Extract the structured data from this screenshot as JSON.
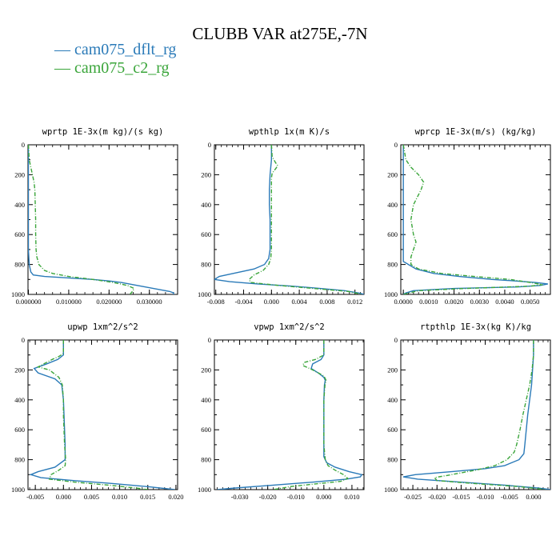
{
  "title": "CLUBB VAR at275E,-7N",
  "legend": [
    {
      "label": "— cam075_dflt_rg",
      "color": "#2a7ab8"
    },
    {
      "label": "— cam075_c2_rg",
      "color": "#3aa53a"
    }
  ],
  "chart_data": [
    {
      "type": "line",
      "title": "wprtp  1E-3x(m kg)/(s kg)",
      "xlim": [
        -0.0001,
        0.037
      ],
      "ylim": [
        0,
        1000
      ],
      "y_inverted": true,
      "xticks": [
        0.0,
        0.01,
        0.02,
        0.03
      ],
      "xticklabels": [
        "0.000000",
        "0.010000",
        "0.020000",
        "0.030000"
      ],
      "yticks": [
        0,
        200,
        400,
        600,
        800,
        1000
      ],
      "yticklabels": [
        "0",
        "200",
        "400",
        "600",
        "800",
        "1000"
      ],
      "series": [
        {
          "name": "cam075_dflt_rg",
          "color": "#2a7ab8",
          "dashed": false,
          "y": [
            0,
            100,
            200,
            300,
            400,
            500,
            600,
            700,
            800,
            850,
            870,
            880,
            890,
            900,
            910,
            920,
            930,
            940,
            950,
            960,
            970,
            980,
            990,
            1000
          ],
          "x": [
            0.0,
            0.0,
            0.0,
            0.0,
            0.0,
            0.0,
            0.0,
            0.0,
            0.0002,
            0.0006,
            0.0012,
            0.004,
            0.01,
            0.016,
            0.02,
            0.023,
            0.025,
            0.027,
            0.029,
            0.031,
            0.033,
            0.035,
            0.036,
            0.036
          ]
        },
        {
          "name": "cam075_c2_rg",
          "color": "#3aa53a",
          "dashed": true,
          "y": [
            0,
            100,
            150,
            200,
            250,
            300,
            400,
            500,
            600,
            700,
            750,
            800,
            840,
            860,
            880,
            900,
            920,
            940,
            960,
            980,
            1000
          ],
          "x": [
            0.0,
            0.0002,
            0.0006,
            0.001,
            0.0014,
            0.0016,
            0.0017,
            0.0018,
            0.0018,
            0.0019,
            0.0021,
            0.0026,
            0.004,
            0.006,
            0.01,
            0.016,
            0.021,
            0.0245,
            0.0262,
            0.0258,
            0.0252
          ]
        }
      ]
    },
    {
      "type": "line",
      "title": "wpthlp  1x(m K)/s",
      "xlim": [
        -0.0082,
        0.0133
      ],
      "ylim": [
        0,
        1000
      ],
      "y_inverted": true,
      "xticks": [
        -0.008,
        -0.004,
        0.0,
        0.004,
        0.008,
        0.012
      ],
      "xticklabels": [
        "-0.008",
        "-0.004",
        "0.000",
        "0.004",
        "0.008",
        "0.012"
      ],
      "yticks": [
        0,
        200,
        400,
        600,
        800,
        1000
      ],
      "yticklabels": [
        "0",
        "200",
        "400",
        "600",
        "800",
        "1000"
      ],
      "series": [
        {
          "name": "cam075_dflt_rg",
          "color": "#2a7ab8",
          "dashed": false,
          "y": [
            0,
            100,
            200,
            300,
            400,
            500,
            600,
            700,
            760,
            800,
            830,
            860,
            880,
            900,
            915,
            930,
            945,
            960,
            975,
            990,
            1000
          ],
          "x": [
            0.0,
            0.0,
            -0.0002,
            -0.0003,
            -0.0003,
            -0.0002,
            -0.0002,
            -0.0002,
            -0.0004,
            -0.001,
            -0.0025,
            -0.0055,
            -0.0075,
            -0.0082,
            -0.006,
            -0.002,
            0.003,
            0.007,
            0.0105,
            0.0125,
            0.0133
          ]
        },
        {
          "name": "cam075_c2_rg",
          "color": "#3aa53a",
          "dashed": true,
          "y": [
            0,
            80,
            120,
            140,
            160,
            190,
            220,
            300,
            400,
            500,
            600,
            700,
            760,
            800,
            840,
            870,
            900,
            920,
            940,
            960,
            980,
            1000
          ],
          "x": [
            0.0,
            0.0001,
            0.0006,
            0.0009,
            0.0006,
            0.0001,
            0.0,
            0.0,
            0.0,
            0.0,
            0.0,
            0.0,
            -0.0001,
            -0.0004,
            -0.0012,
            -0.0025,
            -0.0032,
            -0.003,
            0.001,
            0.006,
            0.011,
            0.013
          ]
        }
      ]
    },
    {
      "type": "line",
      "title": "wprcp  1E-3x(m/s) (kg/kg)",
      "xlim": [
        -0.0001,
        0.0058
      ],
      "ylim": [
        0,
        1000
      ],
      "y_inverted": true,
      "xticks": [
        0.0,
        0.001,
        0.002,
        0.003,
        0.004,
        0.005
      ],
      "xticklabels": [
        "0.0000",
        "0.0010",
        "0.0020",
        "0.0030",
        "0.0040",
        "0.0050"
      ],
      "yticks": [
        0,
        200,
        400,
        600,
        800,
        1000
      ],
      "yticklabels": [
        "0",
        "200",
        "400",
        "600",
        "800",
        "1000"
      ],
      "series": [
        {
          "name": "cam075_dflt_rg",
          "color": "#2a7ab8",
          "dashed": false,
          "y": [
            0,
            200,
            400,
            600,
            700,
            780,
            800,
            830,
            860,
            880,
            900,
            910,
            920,
            930,
            940,
            950,
            960,
            975,
            990,
            1000
          ],
          "x": [
            0.0,
            0.0,
            0.0,
            0.0,
            0.0,
            0.0,
            0.0002,
            0.0005,
            0.0012,
            0.0022,
            0.0035,
            0.0044,
            0.0052,
            0.0057,
            0.0054,
            0.0045,
            0.002,
            0.0004,
            0.0001,
            0.0
          ]
        },
        {
          "name": "cam075_c2_rg",
          "color": "#3aa53a",
          "dashed": true,
          "y": [
            0,
            100,
            150,
            200,
            250,
            300,
            400,
            500,
            600,
            650,
            700,
            750,
            800,
            830,
            860,
            880,
            900,
            920,
            935,
            945,
            960,
            975,
            1000
          ],
          "x": [
            0.0,
            0.0001,
            0.0003,
            0.0006,
            0.0008,
            0.0007,
            0.0004,
            0.0003,
            0.0004,
            0.0005,
            0.0004,
            0.0003,
            0.0003,
            0.0006,
            0.0015,
            0.0028,
            0.0042,
            0.005,
            0.0055,
            0.005,
            0.0025,
            0.0006,
            0.0
          ]
        }
      ]
    },
    {
      "type": "line",
      "title": "upwp  1xm^2/s^2",
      "xlim": [
        -0.0063,
        0.0203
      ],
      "ylim": [
        0,
        1000
      ],
      "y_inverted": true,
      "xticks": [
        -0.005,
        0.0,
        0.005,
        0.01,
        0.015,
        0.02
      ],
      "xticklabels": [
        "-0.005",
        "0.000",
        "0.005",
        "0.010",
        "0.015",
        "0.020"
      ],
      "yticks": [
        0,
        200,
        400,
        600,
        800,
        1000
      ],
      "yticklabels": [
        "0",
        "200",
        "400",
        "600",
        "800",
        "1000"
      ],
      "series": [
        {
          "name": "cam075_dflt_rg",
          "color": "#2a7ab8",
          "dashed": false,
          "y": [
            0,
            100,
            130,
            160,
            190,
            220,
            260,
            300,
            400,
            500,
            600,
            700,
            800,
            850,
            880,
            900,
            920,
            940,
            960,
            980,
            1000
          ],
          "x": [
            0.0,
            0.0,
            -0.001,
            -0.003,
            -0.0052,
            -0.0045,
            -0.0015,
            -0.0003,
            0.0,
            0.0001,
            0.0002,
            0.0003,
            0.0003,
            -0.0015,
            -0.0045,
            -0.0058,
            -0.004,
            0.002,
            0.009,
            0.015,
            0.0198
          ]
        },
        {
          "name": "cam075_c2_rg",
          "color": "#3aa53a",
          "dashed": true,
          "y": [
            0,
            90,
            110,
            130,
            160,
            180,
            200,
            250,
            300,
            400,
            500,
            600,
            700,
            800,
            840,
            870,
            900,
            930,
            950,
            970,
            990,
            1000
          ],
          "x": [
            0.0,
            0.0,
            -0.0008,
            -0.002,
            -0.0035,
            -0.0045,
            -0.0025,
            -0.0008,
            -0.0002,
            0.0,
            0.0,
            0.0001,
            0.0002,
            0.0004,
            0.0003,
            -0.0008,
            -0.0022,
            -0.0025,
            0.002,
            0.008,
            0.013,
            0.015
          ]
        }
      ]
    },
    {
      "type": "line",
      "title": "vpwp  1xm^2/s^2",
      "xlim": [
        -0.039,
        0.0143
      ],
      "ylim": [
        0,
        1000
      ],
      "y_inverted": true,
      "xticks": [
        -0.03,
        -0.02,
        -0.01,
        0.0,
        0.01
      ],
      "xticklabels": [
        "-0.030",
        "-0.020",
        "-0.010",
        "0.000",
        "0.010"
      ],
      "yticks": [
        0,
        200,
        400,
        600,
        800,
        1000
      ],
      "yticklabels": [
        "0",
        "200",
        "400",
        "600",
        "800",
        "1000"
      ],
      "series": [
        {
          "name": "cam075_dflt_rg",
          "color": "#2a7ab8",
          "dashed": false,
          "y": [
            0,
            100,
            130,
            160,
            190,
            220,
            250,
            270,
            300,
            400,
            500,
            600,
            700,
            780,
            820,
            850,
            880,
            900,
            915,
            930,
            950,
            970,
            990,
            1000
          ],
          "x": [
            0.0,
            0.0,
            -0.001,
            -0.004,
            -0.0045,
            -0.002,
            0.0,
            0.0005,
            0.0002,
            0.0,
            0.0,
            0.0,
            0.0,
            0.0,
            0.001,
            0.004,
            0.009,
            0.0135,
            0.013,
            0.008,
            -0.004,
            -0.018,
            -0.032,
            -0.038
          ]
        },
        {
          "name": "cam075_c2_rg",
          "color": "#3aa53a",
          "dashed": true,
          "y": [
            0,
            100,
            130,
            150,
            170,
            200,
            240,
            270,
            300,
            400,
            500,
            600,
            700,
            800,
            840,
            870,
            900,
            925,
            945,
            960,
            980,
            1000
          ],
          "x": [
            0.0,
            0.0,
            -0.003,
            -0.007,
            -0.0075,
            -0.004,
            0.0,
            0.0008,
            0.0004,
            0.0,
            0.0,
            0.0,
            0.0,
            0.0005,
            0.0015,
            0.004,
            0.007,
            0.0085,
            0.006,
            -0.002,
            -0.012,
            -0.018
          ]
        }
      ]
    },
    {
      "type": "line",
      "title": "rtpthlp  1E-3x(kg K)/kg",
      "xlim": [
        -0.0275,
        0.0035
      ],
      "ylim": [
        0,
        1000
      ],
      "y_inverted": true,
      "xticks": [
        -0.025,
        -0.02,
        -0.015,
        -0.01,
        -0.005,
        0.0
      ],
      "xticklabels": [
        "-0.025",
        "-0.020",
        "-0.015",
        "-0.010",
        "-0.005",
        "0.000"
      ],
      "yticks": [
        0,
        200,
        400,
        600,
        800,
        1000
      ],
      "yticklabels": [
        "0",
        "200",
        "400",
        "600",
        "800",
        "1000"
      ],
      "series": [
        {
          "name": "cam075_dflt_rg",
          "color": "#2a7ab8",
          "dashed": false,
          "y": [
            0,
            100,
            200,
            300,
            400,
            500,
            600,
            700,
            760,
            800,
            840,
            860,
            880,
            900,
            915,
            930,
            950,
            970,
            990,
            1000
          ],
          "x": [
            0.0,
            0.0,
            -0.0002,
            -0.0004,
            -0.0008,
            -0.0012,
            -0.0015,
            -0.0018,
            -0.002,
            -0.003,
            -0.006,
            -0.01,
            -0.017,
            -0.0245,
            -0.027,
            -0.024,
            -0.015,
            -0.006,
            0.001,
            0.0035
          ]
        },
        {
          "name": "cam075_c2_rg",
          "color": "#3aa53a",
          "dashed": true,
          "y": [
            0,
            100,
            200,
            300,
            400,
            500,
            600,
            700,
            750,
            800,
            840,
            870,
            900,
            920,
            940,
            960,
            980,
            1000
          ],
          "x": [
            0.0,
            0.0,
            -0.0003,
            -0.0008,
            -0.0015,
            -0.0022,
            -0.0028,
            -0.0035,
            -0.004,
            -0.0055,
            -0.008,
            -0.012,
            -0.017,
            -0.0205,
            -0.02,
            -0.012,
            -0.003,
            0.0025
          ]
        }
      ]
    }
  ]
}
